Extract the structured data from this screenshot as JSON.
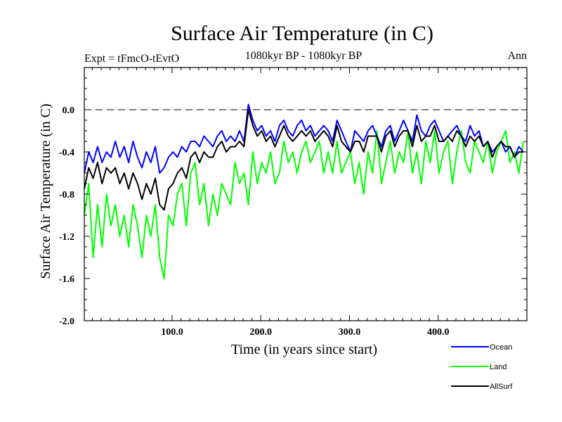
{
  "chart_data": {
    "type": "line",
    "title": "Surface Air Temperature (in C)",
    "subtitle": "1080kyr BP - 1080kyr BP",
    "left_label": "Expt = tFmcO-tEvtO",
    "right_label": "Ann",
    "xlabel": "Time (in years since start)",
    "ylabel": "Surface Air Temperature (in C)",
    "xlim": [
      1,
      500
    ],
    "ylim": [
      -2.0,
      0.4
    ],
    "xticks": [
      100,
      200,
      300,
      400
    ],
    "xtick_labels": [
      "100.0",
      "200.0",
      "300.0",
      "400.0"
    ],
    "yticks": [
      -2.0,
      -1.6,
      -1.2,
      -0.8,
      -0.4,
      0.0
    ],
    "ytick_labels": [
      "-2.0",
      "-1.6",
      "-1.2",
      "-0.8",
      "-0.4",
      "0.0"
    ],
    "reference_line": 0.0,
    "legend_position": "bottom-right",
    "x_step": 5,
    "x_start": 1,
    "series": [
      {
        "name": "Land",
        "color": "#00ff00",
        "values": [
          -1.0,
          -0.7,
          -1.4,
          -0.9,
          -1.3,
          -0.8,
          -1.1,
          -0.9,
          -1.2,
          -1.0,
          -1.3,
          -0.9,
          -1.1,
          -1.4,
          -1.0,
          -1.2,
          -0.9,
          -1.4,
          -1.6,
          -1.0,
          -1.1,
          -0.8,
          -0.7,
          -1.1,
          -0.6,
          -0.5,
          -0.9,
          -0.7,
          -1.1,
          -0.8,
          -1.0,
          -0.7,
          -0.8,
          -0.9,
          -0.5,
          -0.7,
          -0.6,
          -0.9,
          -0.4,
          -0.7,
          -0.5,
          -0.6,
          -0.4,
          -0.7,
          -0.6,
          -0.3,
          -0.5,
          -0.4,
          -0.6,
          -0.4,
          -0.3,
          -0.5,
          -0.4,
          -0.3,
          -0.6,
          -0.4,
          -0.6,
          -0.3,
          -0.6,
          -0.5,
          -0.4,
          -0.7,
          -0.5,
          -0.8,
          -0.4,
          -0.6,
          -0.2,
          -0.7,
          -0.5,
          -0.3,
          -0.6,
          -0.4,
          -0.5,
          -0.2,
          -0.6,
          -0.4,
          -0.7,
          -0.3,
          -0.5,
          -0.2,
          -0.6,
          -0.4,
          -0.3,
          -0.7,
          -0.4,
          -0.2,
          -0.5,
          -0.6,
          -0.3,
          -0.4,
          -0.5,
          -0.3,
          -0.6,
          -0.4,
          -0.3,
          -0.2,
          -0.5,
          -0.4,
          -0.6,
          -0.3
        ]
      },
      {
        "name": "Ocean",
        "color": "#0000ff",
        "values": [
          -0.6,
          -0.4,
          -0.5,
          -0.35,
          -0.5,
          -0.4,
          -0.45,
          -0.3,
          -0.45,
          -0.35,
          -0.5,
          -0.3,
          -0.45,
          -0.55,
          -0.4,
          -0.5,
          -0.35,
          -0.6,
          -0.55,
          -0.45,
          -0.4,
          -0.45,
          -0.35,
          -0.4,
          -0.3,
          -0.3,
          -0.35,
          -0.25,
          -0.3,
          -0.35,
          -0.25,
          -0.2,
          -0.3,
          -0.25,
          -0.3,
          -0.2,
          -0.3,
          0.05,
          -0.1,
          -0.2,
          -0.15,
          -0.25,
          -0.2,
          -0.3,
          -0.15,
          -0.1,
          -0.2,
          -0.25,
          -0.15,
          -0.1,
          -0.2,
          -0.15,
          -0.25,
          -0.2,
          -0.15,
          -0.2,
          -0.3,
          -0.1,
          -0.2,
          -0.3,
          -0.4,
          -0.2,
          -0.25,
          -0.3,
          -0.2,
          -0.15,
          -0.25,
          -0.35,
          -0.2,
          -0.15,
          -0.3,
          -0.2,
          -0.1,
          -0.2,
          -0.3,
          -0.05,
          -0.2,
          -0.25,
          -0.15,
          -0.1,
          -0.2,
          -0.3,
          -0.25,
          -0.2,
          -0.15,
          -0.25,
          -0.3,
          -0.15,
          -0.25,
          -0.2,
          -0.35,
          -0.3,
          -0.4,
          -0.35,
          -0.3,
          -0.4,
          -0.35,
          -0.45,
          -0.35,
          -0.4
        ]
      },
      {
        "name": "AllSurf",
        "color": "#000000",
        "values": [
          -0.75,
          -0.55,
          -0.65,
          -0.5,
          -0.7,
          -0.55,
          -0.6,
          -0.55,
          -0.7,
          -0.6,
          -0.75,
          -0.6,
          -0.7,
          -0.85,
          -0.7,
          -0.8,
          -0.65,
          -0.9,
          -0.95,
          -0.75,
          -0.7,
          -0.6,
          -0.55,
          -0.65,
          -0.45,
          -0.4,
          -0.5,
          -0.4,
          -0.45,
          -0.45,
          -0.35,
          -0.3,
          -0.4,
          -0.35,
          -0.35,
          -0.3,
          -0.35,
          0.0,
          -0.15,
          -0.25,
          -0.2,
          -0.3,
          -0.25,
          -0.35,
          -0.25,
          -0.15,
          -0.25,
          -0.3,
          -0.25,
          -0.2,
          -0.25,
          -0.2,
          -0.3,
          -0.25,
          -0.2,
          -0.25,
          -0.35,
          -0.15,
          -0.3,
          -0.35,
          -0.4,
          -0.3,
          -0.3,
          -0.4,
          -0.25,
          -0.25,
          -0.25,
          -0.4,
          -0.25,
          -0.2,
          -0.35,
          -0.25,
          -0.2,
          -0.2,
          -0.35,
          -0.15,
          -0.3,
          -0.25,
          -0.25,
          -0.15,
          -0.3,
          -0.3,
          -0.25,
          -0.3,
          -0.2,
          -0.25,
          -0.35,
          -0.25,
          -0.3,
          -0.25,
          -0.35,
          -0.3,
          -0.45,
          -0.35,
          -0.3,
          -0.35,
          -0.35,
          -0.45,
          -0.4,
          -0.4
        ]
      }
    ],
    "legend": [
      {
        "name": "Ocean",
        "color": "#0000ff"
      },
      {
        "name": "Land",
        "color": "#00ff00"
      },
      {
        "name": "AllSurf",
        "color": "#000000"
      }
    ]
  }
}
